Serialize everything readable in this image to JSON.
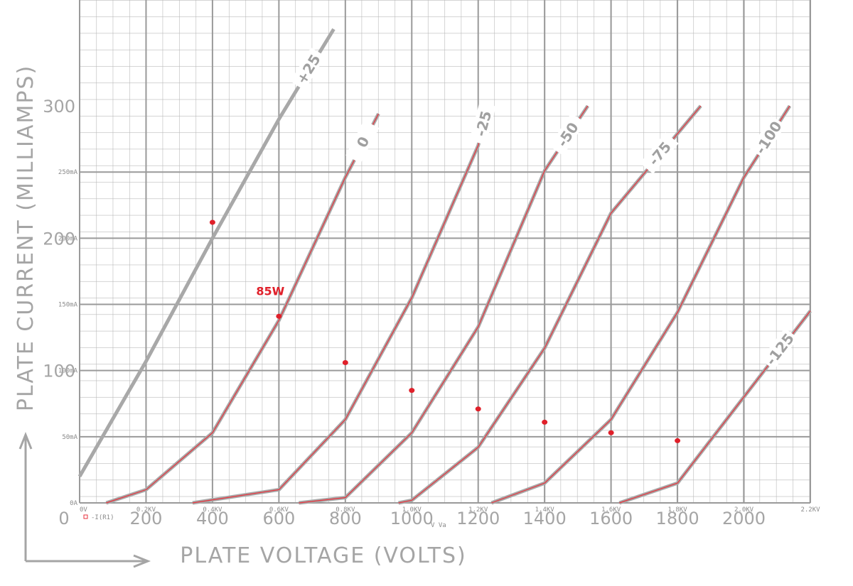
{
  "chart_data": {
    "type": "line",
    "y_label": "PLATE CURRENT (MILLIAMPS)",
    "x_label": "PLATE VOLTAGE (VOLTS)",
    "x_label_sim": "V Va",
    "trace_label": "-I(R1)",
    "xlim": [
      0,
      2200
    ],
    "ylim": [
      0,
      380
    ],
    "xticks": [
      {
        "value": 0,
        "label": "0V"
      },
      {
        "value": 200,
        "label": "0.2KV"
      },
      {
        "value": 400,
        "label": "0.4KV"
      },
      {
        "value": 600,
        "label": "0.6KV"
      },
      {
        "value": 800,
        "label": "0.8KV"
      },
      {
        "value": 1000,
        "label": "1.0KV"
      },
      {
        "value": 1200,
        "label": "1.2KV"
      },
      {
        "value": 1400,
        "label": "1.4KV"
      },
      {
        "value": 1600,
        "label": "1.6KV"
      },
      {
        "value": 1800,
        "label": "1.8KV"
      },
      {
        "value": 2000,
        "label": "2.0KV"
      },
      {
        "value": 2200,
        "label": "2.2KV"
      }
    ],
    "xticks_hand": [
      0,
      200,
      400,
      600,
      800,
      1000,
      1200,
      1400,
      1600,
      1800,
      2000
    ],
    "yticks": [
      {
        "value": 0,
        "label": "0A"
      },
      {
        "value": 50,
        "label": "50mA"
      },
      {
        "value": 100,
        "label": "100mA"
      },
      {
        "value": 150,
        "label": "150mA"
      },
      {
        "value": 200,
        "label": "200mA"
      },
      {
        "value": 250,
        "label": "250mA"
      }
    ],
    "yticks_hand": [
      100,
      200,
      300
    ],
    "grid": true,
    "sim_color": "#e8323c",
    "series": [
      {
        "name": "+25",
        "color": "#a8a8a8",
        "simulated": false,
        "x": [
          0,
          200,
          400,
          600,
          765
        ],
        "values": [
          20,
          107,
          200,
          290,
          358
        ]
      },
      {
        "name": "0",
        "color": "#a8a8a8",
        "simulated": true,
        "x": [
          80,
          200,
          400,
          600,
          800,
          900
        ],
        "values": [
          0,
          10,
          53,
          138,
          246,
          294
        ]
      },
      {
        "name": "-25",
        "color": "#a8a8a8",
        "simulated": true,
        "x": [
          340,
          600,
          800,
          1000,
          1200,
          1232
        ],
        "values": [
          0,
          10,
          63,
          155,
          270,
          300
        ]
      },
      {
        "name": "-50",
        "color": "#a8a8a8",
        "simulated": true,
        "x": [
          660,
          800,
          1000,
          1200,
          1400,
          1530
        ],
        "values": [
          0,
          4,
          53,
          133,
          251,
          300
        ]
      },
      {
        "name": "-75",
        "color": "#a8a8a8",
        "simulated": true,
        "x": [
          960,
          1000,
          1200,
          1400,
          1600,
          1870
        ],
        "values": [
          0,
          2,
          42,
          117,
          219,
          300
        ]
      },
      {
        "name": "-100",
        "color": "#a8a8a8",
        "simulated": true,
        "x": [
          1240,
          1400,
          1600,
          1800,
          2000,
          2138
        ],
        "values": [
          0,
          15,
          63,
          144,
          246,
          300
        ]
      },
      {
        "name": "-125",
        "color": "#a8a8a8",
        "simulated": true,
        "x": [
          1625,
          1800,
          2000,
          2200
        ],
        "values": [
          0,
          15,
          80,
          145
        ]
      }
    ],
    "dissipation": {
      "label": "85W",
      "color": "#e0202a",
      "x": [
        400,
        600,
        800,
        1000,
        1200,
        1400,
        1600,
        1800
      ],
      "values": [
        212,
        141,
        106,
        85,
        71,
        61,
        53,
        47
      ]
    }
  }
}
